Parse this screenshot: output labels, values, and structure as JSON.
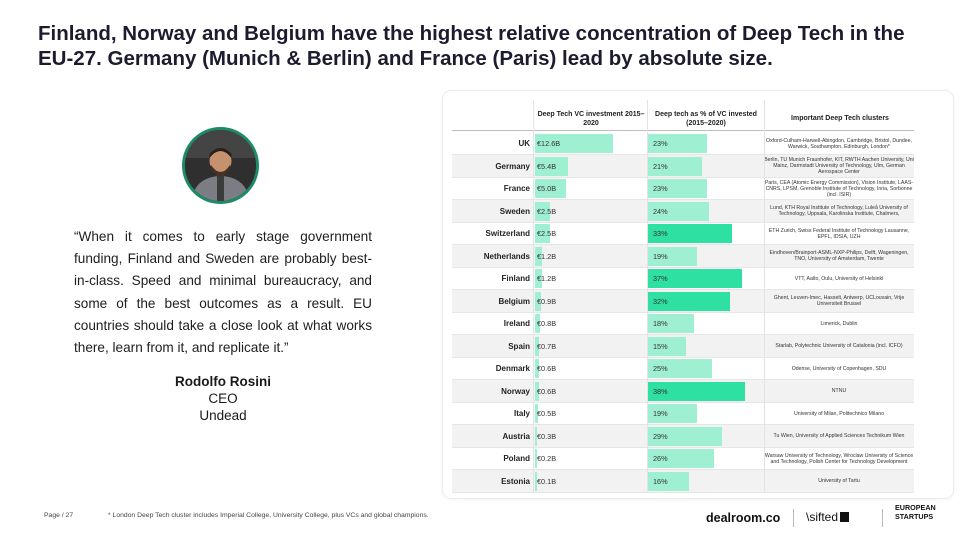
{
  "headline": "Finland, Norway and Belgium have the highest relative concentration of Deep Tech in the EU-27. Germany (Munich & Berlin) and France (Paris) lead by absolute size.",
  "quote": "“When it comes to early stage government funding, Finland and Sweden are probably best-in-class. Speed and minimal bureaucracy, and some of the best outcomes as a result. EU countries should take a close look at what works there, learn from it, and replicate it.”",
  "person": {
    "name": "Rodolfo Rosini",
    "role": "CEO",
    "company": "Undead"
  },
  "table": {
    "headers": {
      "vc": "Deep Tech VC investment 2015–2020",
      "pct": "Deep tech as % of VC invested  (2015–2020)",
      "clusters": "Important Deep Tech clusters"
    },
    "colors": {
      "light": "#9fefd3",
      "dark": "#2fe0a3"
    },
    "max_vc": 12.6,
    "max_pct": 38,
    "rows": [
      {
        "country": "UK",
        "vc_label": "€12.6B",
        "vc": 12.6,
        "pct_label": "23%",
        "pct": 23,
        "clusters": "Oxford-Culham-Harwell-Abingdon, Cambridge, Bristol, Dundee, Warwick, Southampton, Edinburgh, London*"
      },
      {
        "country": "Germany",
        "vc_label": "€5.4B",
        "vc": 5.4,
        "pct_label": "21%",
        "pct": 21,
        "clusters": "Berlin, TU Munich Fraunhofer, KIT, RWTH Aachen University, Uni Mainz, Darmstadt University of Technology, Ulm, German Aerospace Center"
      },
      {
        "country": "France",
        "vc_label": "€5.0B",
        "vc": 5.0,
        "pct_label": "23%",
        "pct": 23,
        "clusters": "Paris, CEA (Atomic Energy Commission), Vision Institute, LAAS-CNRS, LPSM, Grenoble Institute of Technology, Inria, Sorbonne (incl. ISIR)"
      },
      {
        "country": "Sweden",
        "vc_label": "€2.5B",
        "vc": 2.5,
        "pct_label": "24%",
        "pct": 24,
        "clusters": "Lund,  KTH Royal Institute of Technology, Luleå University of Technology, Uppsala, Karolinska Institute, Chalmers,"
      },
      {
        "country": "Switzerland",
        "vc_label": "€2.5B",
        "vc": 2.5,
        "pct_label": "33%",
        "pct": 33,
        "clusters": "ETH Zurich, Swiss Federal Institute of Technology Lausanne, EPFL, IDSIA, UZH"
      },
      {
        "country": "Netherlands",
        "vc_label": "€1.2B",
        "vc": 1.2,
        "pct_label": "19%",
        "pct": 19,
        "clusters": "Eindhoven/Brainport-ASML-NXP-Philips, Delft, Wageningen, TNO, University of Amsterdam, Twente"
      },
      {
        "country": "Finland",
        "vc_label": "€1.2B",
        "vc": 1.2,
        "pct_label": "37%",
        "pct": 37,
        "clusters": "VTT, Aalto, Oulu, University of Helsinki"
      },
      {
        "country": "Belgium",
        "vc_label": "€0.9B",
        "vc": 0.9,
        "pct_label": "32%",
        "pct": 32,
        "clusters": "Ghent, Leuven-Imec, Hasselt, Antwerp, UCLouvain, Vrije Universiteit Brussel"
      },
      {
        "country": "Ireland",
        "vc_label": "€0.8B",
        "vc": 0.8,
        "pct_label": "18%",
        "pct": 18,
        "clusters": "Limerick, Dublin"
      },
      {
        "country": "Spain",
        "vc_label": "€0.7B",
        "vc": 0.7,
        "pct_label": "15%",
        "pct": 15,
        "clusters": "Starlab,  Polytechnic University of Catalonia (incl. ICFO)"
      },
      {
        "country": "Denmark",
        "vc_label": "€0.6B",
        "vc": 0.6,
        "pct_label": "25%",
        "pct": 25,
        "clusters": "Odense, University of Copenhagen, SDU"
      },
      {
        "country": "Norway",
        "vc_label": "€0.6B",
        "vc": 0.6,
        "pct_label": "38%",
        "pct": 38,
        "clusters": "NTNU"
      },
      {
        "country": "Italy",
        "vc_label": "€0.5B",
        "vc": 0.5,
        "pct_label": "19%",
        "pct": 19,
        "clusters": "University of Milan, Politechnico Milano"
      },
      {
        "country": "Austria",
        "vc_label": "€0.3B",
        "vc": 0.3,
        "pct_label": "29%",
        "pct": 29,
        "clusters": "Tu Wien, University of Applied Sciences Technikum Wien"
      },
      {
        "country": "Poland",
        "vc_label": "€0.2B",
        "vc": 0.2,
        "pct_label": "26%",
        "pct": 26,
        "clusters": "Warsaw University of Technology, Wroclaw University of Science and Technology, Polish Center for Technology Development"
      },
      {
        "country": "Estonia",
        "vc_label": "€0.1B",
        "vc": 0.1,
        "pct_label": "16%",
        "pct": 16,
        "clusters": "University of Tartu"
      }
    ]
  },
  "footer": {
    "page": "Page / 27",
    "footnote": "* London Deep Tech cluster includes Imperial College, University College, plus VCs and global champions.",
    "logo_dealroom": "dealroom.co",
    "logo_sifted": "\\sifted",
    "logo_es_line1": "EUROPEAN",
    "logo_es_line2": "STARTUPS"
  }
}
